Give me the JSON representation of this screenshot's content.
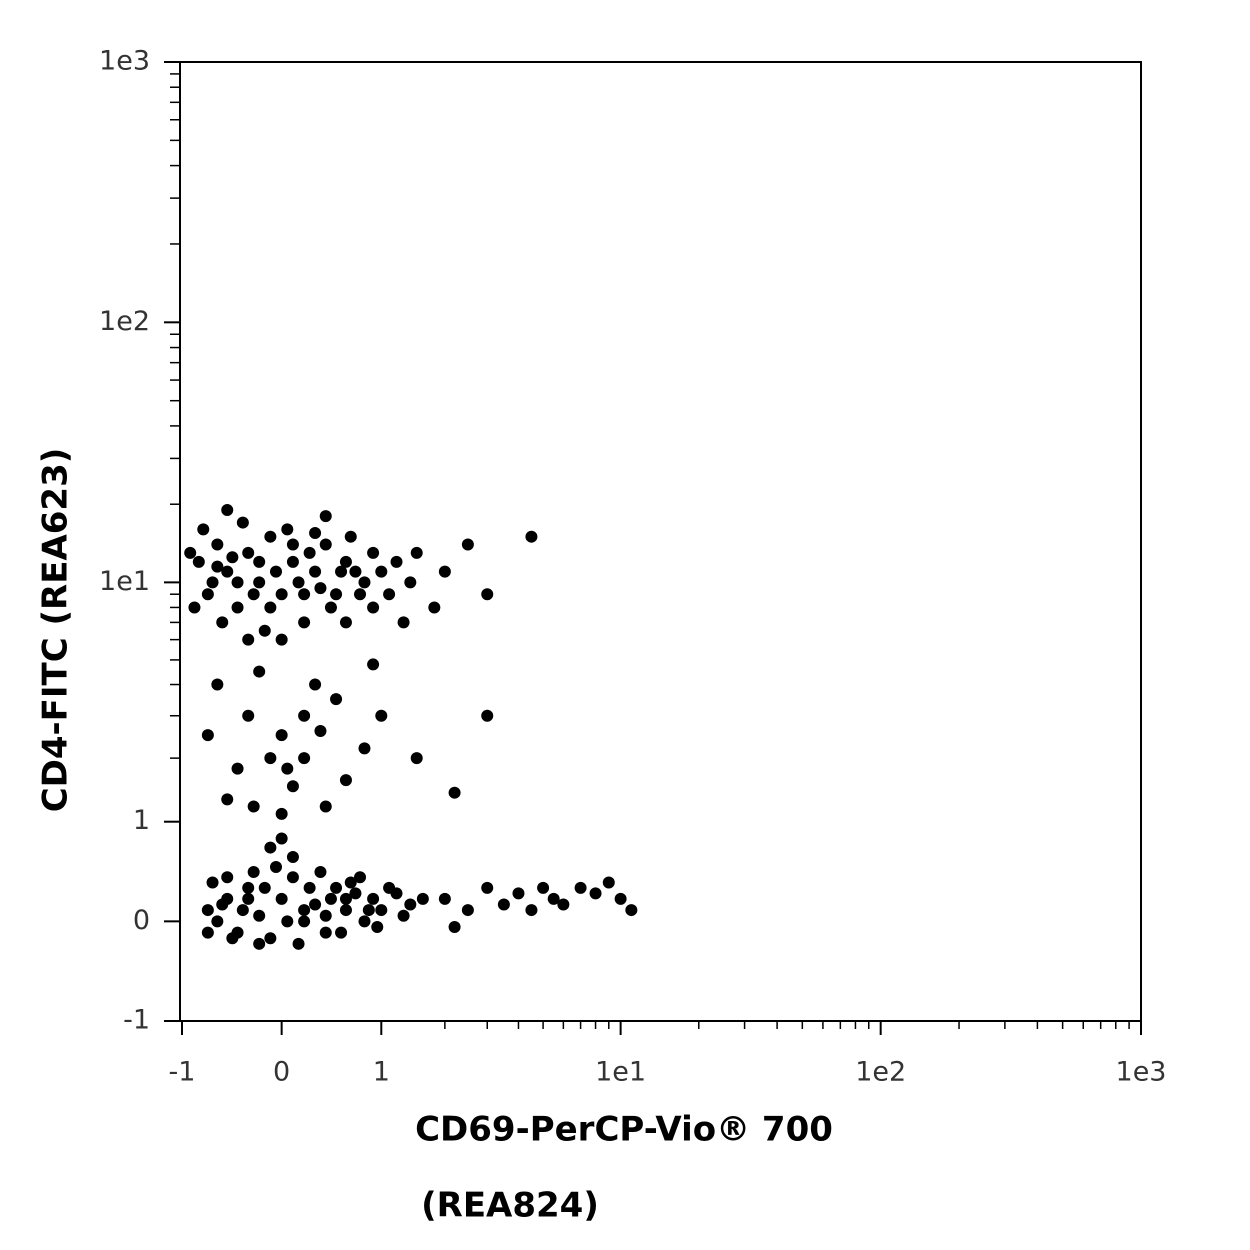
{
  "chart_data": {
    "type": "scatter",
    "xlabel": [
      "CD69-PerCP-Vio® 700",
      "(REA824)"
    ],
    "ylabel": "CD4-FITC (REA623)",
    "xscale": "asinh",
    "yscale": "asinh",
    "xlim": [
      -1,
      1000
    ],
    "ylim": [
      -1,
      1000
    ],
    "xticks": [
      -1,
      0,
      1,
      {
        "value": 10,
        "label": "1e1"
      },
      {
        "value": 100,
        "label": "1e2"
      },
      {
        "value": 1000,
        "label": "1e3"
      }
    ],
    "yticks": [
      -1,
      0,
      1,
      {
        "value": 10,
        "label": "1e1"
      },
      {
        "value": 100,
        "label": "1e2"
      },
      {
        "value": 1000,
        "label": "1e3"
      }
    ],
    "xminorticks": [
      2,
      3,
      4,
      5,
      6,
      7,
      8,
      9,
      20,
      30,
      40,
      50,
      60,
      70,
      80,
      90,
      200,
      300,
      400,
      500,
      600,
      700,
      800,
      900
    ],
    "yminorticks": [
      2,
      3,
      4,
      5,
      6,
      7,
      8,
      9,
      20,
      30,
      40,
      50,
      60,
      70,
      80,
      90,
      200,
      300,
      400,
      500,
      600,
      700,
      800,
      900
    ],
    "color": "#000000",
    "x": [
      -0.8,
      -0.7,
      -0.6,
      -0.5,
      -0.4,
      -0.3,
      -0.2,
      -0.1,
      0,
      0.1,
      0.2,
      0.3,
      0.4,
      0.5,
      0.6,
      0.8,
      1.0,
      1.2,
      -0.75,
      -0.55,
      -0.35,
      -0.15,
      0.05,
      0.25,
      0.45,
      0.65,
      0.9,
      -0.65,
      -0.45,
      -0.25,
      -0.05,
      0.15,
      0.35,
      0.55,
      0.75,
      1.1,
      1.5,
      2,
      1.8,
      -0.85,
      -0.3,
      0,
      0.4,
      -0.5,
      2.5,
      3,
      4.5,
      1.3,
      -0.2,
      0.1,
      -0.6,
      0.3,
      0.7,
      -0.1,
      -0.4,
      0.2,
      0.9,
      1.4,
      -0.9,
      0.6,
      -0.6,
      -0.3,
      0,
      0.2,
      0.5,
      -0.4,
      0.1,
      0.4,
      0.8,
      -0.2,
      0.3,
      1,
      -0.5,
      0,
      0.6,
      -0.1,
      0.2,
      1.5,
      0.9,
      -0.7,
      0.05,
      0.35,
      2.2,
      3,
      -0.25,
      -0.7,
      -0.6,
      -0.5,
      -0.4,
      -0.3,
      -0.2,
      -0.1,
      0,
      0.1,
      0.2,
      0.3,
      0.4,
      0.5,
      0.6,
      0.7,
      0.8,
      0.9,
      1.0,
      1.2,
      1.4,
      1.6,
      -0.65,
      -0.45,
      -0.25,
      -0.05,
      0.15,
      0.35,
      0.55,
      0.75,
      0.95,
      -0.55,
      -0.35,
      -0.15,
      0.05,
      0.25,
      0.45,
      0.65,
      0.85,
      1.1,
      1.3,
      -0.7,
      -0.2,
      0.1,
      0,
      -0.1,
      0.2,
      0.4,
      -0.3,
      0.6,
      -0.5,
      2,
      2.5,
      3,
      3.5,
      4,
      4.5,
      5,
      5.5,
      6,
      7,
      8,
      9,
      10,
      11,
      2.2
    ],
    "y": [
      12,
      9,
      14,
      11,
      8,
      13,
      10,
      15,
      9,
      12,
      7,
      11,
      14,
      9,
      12,
      10,
      11,
      12,
      16,
      7,
      17,
      6.5,
      16,
      13,
      8,
      15,
      13,
      10,
      12.5,
      9,
      11,
      10,
      9.5,
      11,
      9,
      9,
      13,
      11,
      8,
      8,
      6,
      6,
      18,
      19,
      14,
      9,
      15,
      7,
      12,
      14,
      11.5,
      15.5,
      11,
      8,
      10,
      9,
      8,
      10,
      13,
      7,
      4,
      3,
      2.5,
      2,
      3.5,
      1.8,
      1.5,
      1.2,
      2.2,
      4.5,
      4,
      3,
      1.3,
      1.1,
      1.6,
      2,
      3,
      2,
      4.8,
      2.5,
      1.8,
      2.6,
      1.4,
      3,
      1.2,
      0.1,
      0,
      0.2,
      -0.1,
      0.3,
      0.05,
      -0.15,
      0.2,
      0.4,
      0,
      0.15,
      -0.1,
      0.3,
      0.1,
      0.25,
      0,
      0.2,
      0.1,
      0.25,
      0.15,
      0.2,
      0.35,
      -0.15,
      0.45,
      0.5,
      -0.2,
      0.45,
      -0.1,
      0.4,
      -0.05,
      0.15,
      0.1,
      0.3,
      0,
      0.3,
      0.2,
      0.35,
      0.1,
      0.3,
      0.05,
      -0.1,
      -0.2,
      0.6,
      0.8,
      0.7,
      0.1,
      0.05,
      0.2,
      0.2,
      0.4,
      0.2,
      0.1,
      0.3,
      0.15,
      0.25,
      0.1,
      0.3,
      0.2,
      0.15,
      0.3,
      0.25,
      0.35,
      0.2,
      0.1,
      -0.05
    ]
  }
}
